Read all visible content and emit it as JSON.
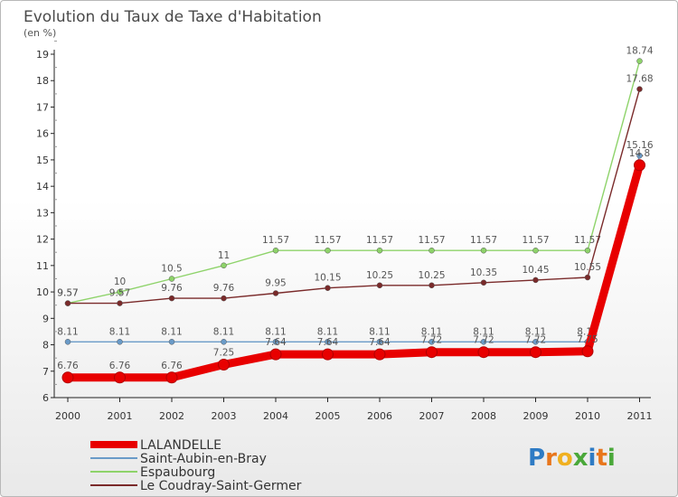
{
  "chart_data": {
    "type": "line",
    "title": "Evolution du Taux de Taxe d'Habitation",
    "subtitle": "(en %)",
    "x": [
      "2000",
      "2001",
      "2002",
      "2003",
      "2004",
      "2005",
      "2006",
      "2007",
      "2008",
      "2009",
      "2010",
      "2011"
    ],
    "ylim": [
      6,
      19
    ],
    "yticks": [
      6,
      7,
      8,
      9,
      10,
      11,
      12,
      13,
      14,
      15,
      16,
      17,
      18,
      19
    ],
    "series": [
      {
        "name": "Saint-Aubin-en-Bray",
        "color": "#6a9bc8",
        "values": [
          8.11,
          8.11,
          8.11,
          8.11,
          8.11,
          8.11,
          8.11,
          8.11,
          8.11,
          8.11,
          8.11,
          15.16
        ],
        "labels": [
          "8.11",
          "8.11",
          "8.11",
          "8.11",
          "8.11",
          "8.11",
          "8.11",
          "8.11",
          "8.11",
          "8.11",
          "8.11",
          "15.16"
        ]
      },
      {
        "name": "Espaubourg",
        "color": "#8ed36a",
        "values": [
          9.57,
          10,
          10.5,
          11,
          11.57,
          11.57,
          11.57,
          11.57,
          11.57,
          11.57,
          11.57,
          18.74
        ],
        "labels": [
          "9.57",
          "10",
          "10.5",
          "11",
          "11.57",
          "11.57",
          "11.57",
          "11.57",
          "11.57",
          "11.57",
          "11.57",
          "18.74"
        ]
      },
      {
        "name": "Le Coudray-Saint-Germer",
        "color": "#7a2a2a",
        "values": [
          9.57,
          9.57,
          9.76,
          9.76,
          9.95,
          10.15,
          10.25,
          10.25,
          10.35,
          10.45,
          10.55,
          17.68
        ],
        "labels": [
          "9.57",
          "9.57",
          "9.76",
          "9.76",
          "9.95",
          "10.15",
          "10.25",
          "10.25",
          "10.35",
          "10.45",
          "10.55",
          "17.68"
        ]
      },
      {
        "name": "LALANDELLE",
        "color": "#e80000",
        "values": [
          6.76,
          6.76,
          6.76,
          7.25,
          7.64,
          7.64,
          7.64,
          7.72,
          7.72,
          7.72,
          7.75,
          14.8
        ],
        "labels": [
          "6.76",
          "6.76",
          "6.76",
          "7.25",
          "7.64",
          "7.64",
          "7.64",
          "7.72",
          "7.72",
          "7.72",
          "7.75",
          "14.8"
        ]
      }
    ],
    "legend": [
      "LALANDELLE",
      "Saint-Aubin-en-Bray",
      "Espaubourg",
      "Le Coudray-Saint-Germer"
    ]
  },
  "brand": "Proxiti"
}
